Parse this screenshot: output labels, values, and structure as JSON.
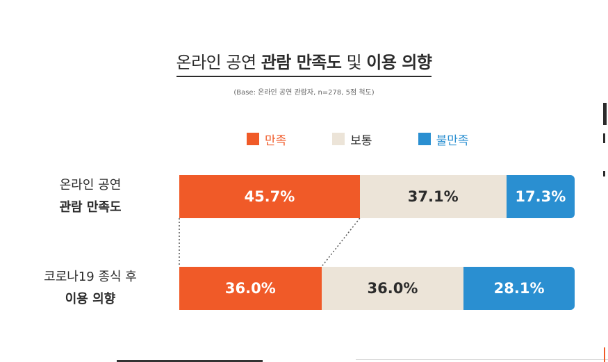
{
  "title": {
    "part1": "온라인 공연 ",
    "part2": "관람 만족도",
    "part3": " 및 ",
    "part4": "이용 의향"
  },
  "subtitle": "(Base: 온라인 공연 관람자, n=278, 5점 척도)",
  "colors": {
    "satisfied": "#F05A28",
    "neutral": "#ECE4D8",
    "dissatisfied": "#2A8FD1",
    "text_dark": "#2b2b2b",
    "text_white": "#ffffff"
  },
  "chart_data": {
    "type": "bar",
    "orientation": "horizontal",
    "stacked": true,
    "title": "온라인 공연 관람 만족도 및 이용 의향",
    "subtitle": "(Base: 온라인 공연 관람자, n=278, 5점 척도)",
    "legend_position": "top",
    "categories": [
      {
        "line1": "온라인 공연",
        "line2": "관람 만족도"
      },
      {
        "line1": "코로나19 종식 후",
        "line2": "이용 의향"
      }
    ],
    "series": [
      {
        "name": "만족",
        "values": [
          45.7,
          36.0
        ],
        "labels": [
          "45.7%",
          "36.0%"
        ]
      },
      {
        "name": "보통",
        "values": [
          37.1,
          36.0
        ],
        "labels": [
          "37.1%",
          "36.0%"
        ]
      },
      {
        "name": "불만족",
        "values": [
          17.3,
          28.1
        ],
        "labels": [
          "17.3%",
          "28.1%"
        ]
      }
    ],
    "xlim": [
      0,
      100
    ]
  }
}
